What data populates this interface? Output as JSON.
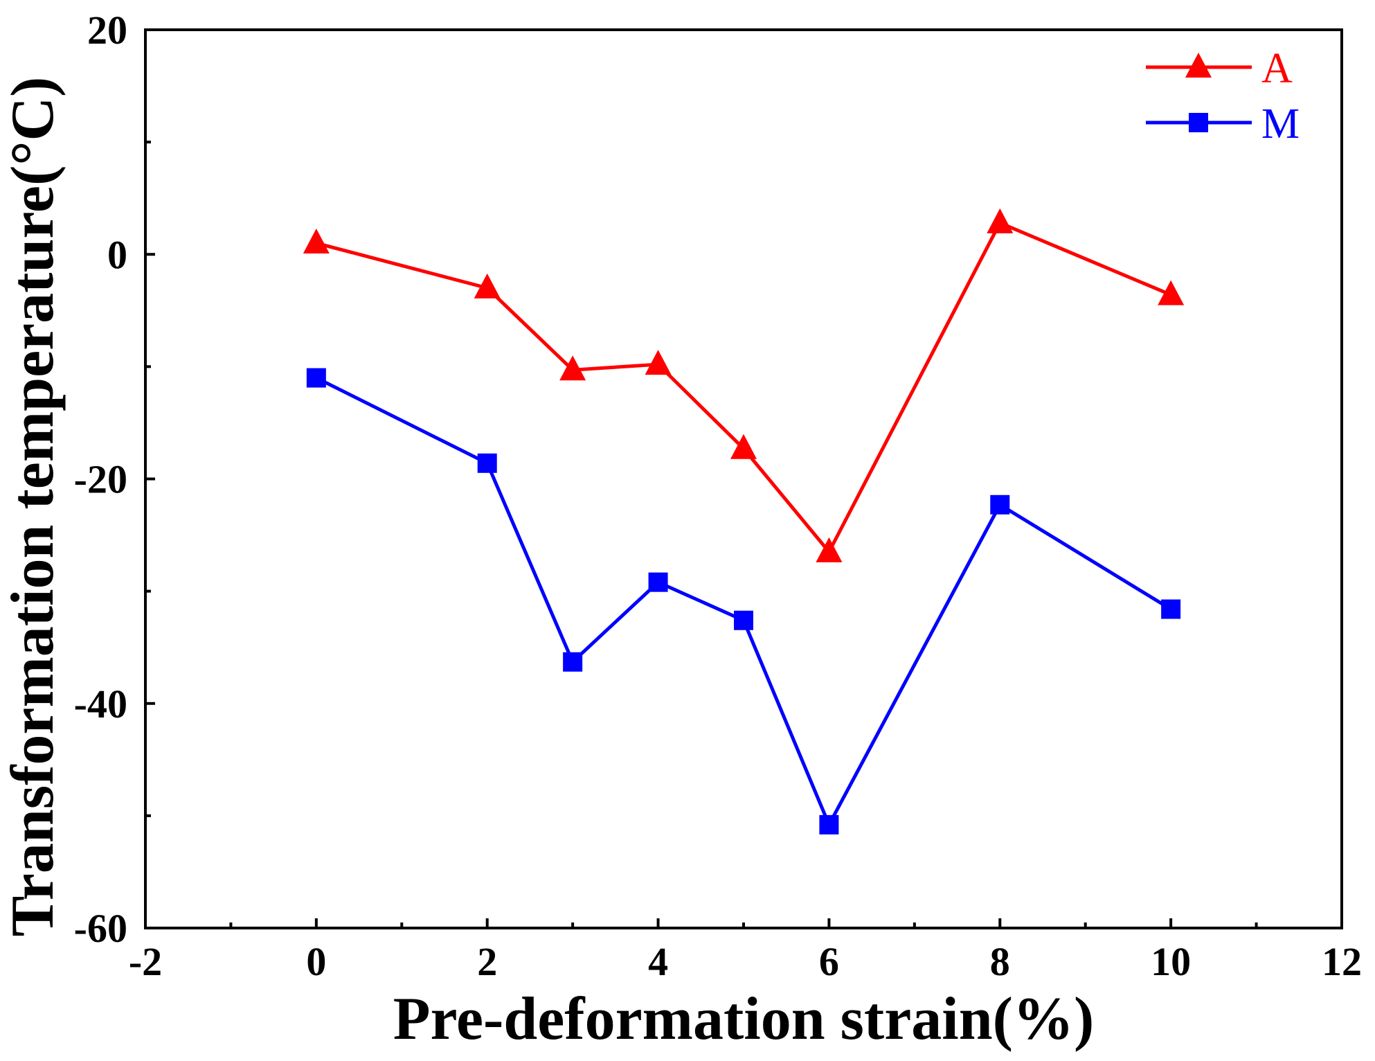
{
  "chart_data": {
    "type": "line",
    "title": "",
    "xlabel": "Pre-deformation strain(%)",
    "ylabel": "Transformation temperature(°C)",
    "xlim": [
      -2,
      12
    ],
    "ylim": [
      -60,
      20
    ],
    "x_ticks": [
      -2,
      0,
      2,
      4,
      6,
      8,
      10,
      12
    ],
    "y_ticks": [
      -60,
      -40,
      -20,
      0,
      20
    ],
    "x_minor_ticks": [
      -1,
      1,
      3,
      5,
      7,
      9,
      11
    ],
    "y_minor_ticks": [
      -50,
      -30,
      -10,
      10
    ],
    "grid": false,
    "legend_position": "top-right",
    "series": [
      {
        "name": "A",
        "color": "#ff0000",
        "marker": "triangle",
        "x": [
          0,
          2,
          3,
          4,
          5,
          6,
          8,
          10
        ],
        "values": [
          1.0,
          -3.0,
          -10.3,
          -9.8,
          -17.3,
          -26.5,
          2.8,
          -3.6
        ]
      },
      {
        "name": "M",
        "color": "#0000ff",
        "marker": "square",
        "x": [
          0,
          2,
          3,
          4,
          5,
          6,
          8,
          10
        ],
        "values": [
          -11.0,
          -18.6,
          -36.3,
          -29.2,
          -32.6,
          -50.8,
          -22.3,
          -31.6
        ]
      }
    ]
  }
}
